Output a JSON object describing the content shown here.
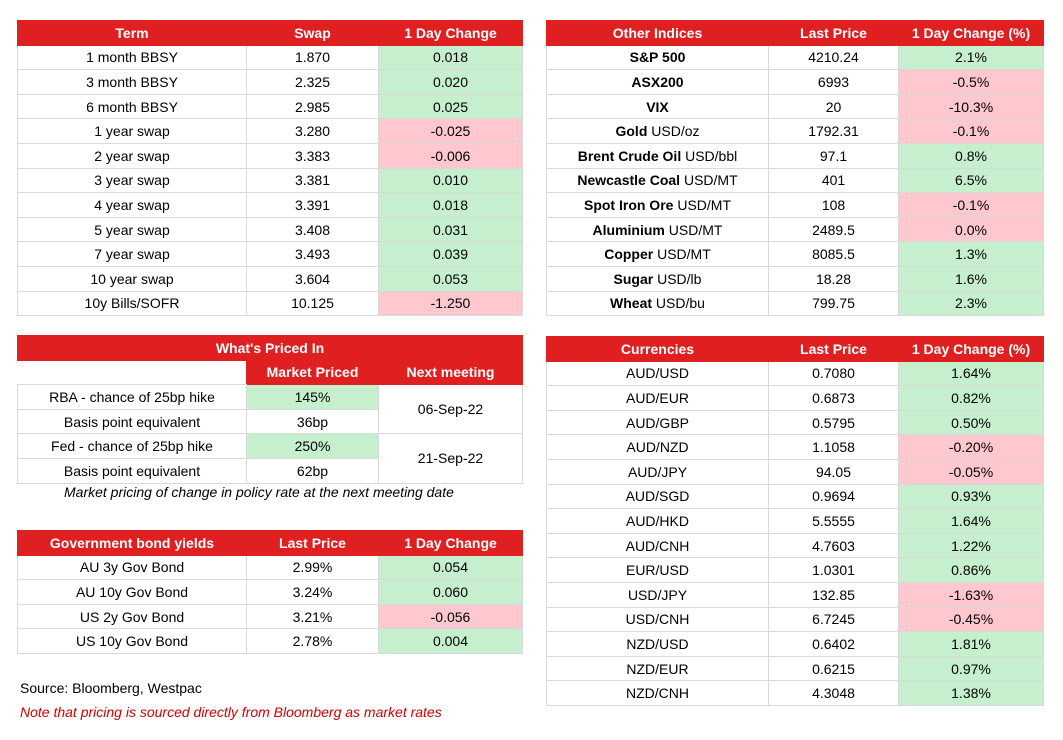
{
  "swaps": {
    "headers": [
      "Term",
      "Swap",
      "1 Day Change"
    ],
    "rows": [
      {
        "term": "1 month BBSY",
        "swap": "1.870",
        "change": "0.018",
        "dir": "pos"
      },
      {
        "term": "3 month BBSY",
        "swap": "2.325",
        "change": "0.020",
        "dir": "pos"
      },
      {
        "term": "6 month BBSY",
        "swap": "2.985",
        "change": "0.025",
        "dir": "pos"
      },
      {
        "term": "1 year swap",
        "swap": "3.280",
        "change": "-0.025",
        "dir": "neg"
      },
      {
        "term": "2 year swap",
        "swap": "3.383",
        "change": "-0.006",
        "dir": "neg"
      },
      {
        "term": "3 year swap",
        "swap": "3.381",
        "change": "0.010",
        "dir": "pos"
      },
      {
        "term": "4 year swap",
        "swap": "3.391",
        "change": "0.018",
        "dir": "pos"
      },
      {
        "term": "5 year swap",
        "swap": "3.408",
        "change": "0.031",
        "dir": "pos"
      },
      {
        "term": "7 year swap",
        "swap": "3.493",
        "change": "0.039",
        "dir": "pos"
      },
      {
        "term": "10 year swap",
        "swap": "3.604",
        "change": "0.053",
        "dir": "pos"
      },
      {
        "term": "10y Bills/SOFR",
        "swap": "10.125",
        "change": "-1.250",
        "dir": "neg"
      }
    ]
  },
  "indices": {
    "headers": [
      "Other Indices",
      "Last Price",
      "1 Day Change (%)"
    ],
    "rows": [
      {
        "name": "S&P 500",
        "unit": "",
        "price": "4210.24",
        "change": "2.1%",
        "dir": "pos"
      },
      {
        "name": "ASX200",
        "unit": "",
        "price": "6993",
        "change": "-0.5%",
        "dir": "neg"
      },
      {
        "name": "VIX",
        "unit": "",
        "price": "20",
        "change": "-10.3%",
        "dir": "neg"
      },
      {
        "name": "Gold",
        "unit": " USD/oz",
        "price": "1792.31",
        "change": "-0.1%",
        "dir": "neg"
      },
      {
        "name": "Brent Crude Oil",
        "unit": " USD/bbl",
        "price": "97.1",
        "change": "0.8%",
        "dir": "pos"
      },
      {
        "name": "Newcastle Coal",
        "unit": " USD/MT",
        "price": "401",
        "change": "6.5%",
        "dir": "pos"
      },
      {
        "name": "Spot Iron Ore",
        "unit": " USD/MT",
        "price": "108",
        "change": "-0.1%",
        "dir": "neg"
      },
      {
        "name": "Aluminium",
        "unit": " USD/MT",
        "price": "2489.5",
        "change": "0.0%",
        "dir": "neg"
      },
      {
        "name": "Copper",
        "unit": " USD/MT",
        "price": "8085.5",
        "change": "1.3%",
        "dir": "pos"
      },
      {
        "name": "Sugar",
        "unit": " USD/lb",
        "price": "18.28",
        "change": "1.6%",
        "dir": "pos"
      },
      {
        "name": "Wheat",
        "unit": " USD/bu",
        "price": "799.75",
        "change": "2.3%",
        "dir": "pos"
      }
    ]
  },
  "priced_in": {
    "title": "What's Priced In",
    "headers": [
      "Market Priced",
      "Next meeting"
    ],
    "rows": [
      {
        "label": "RBA - chance of 25bp hike",
        "value": "145%",
        "dir": "pos"
      },
      {
        "label": "Basis point equivalent",
        "value": "36bp",
        "dir": ""
      },
      {
        "label": "Fed - chance of 25bp hike",
        "value": "250%",
        "dir": "pos"
      },
      {
        "label": "Basis point equivalent",
        "value": "62bp",
        "dir": ""
      }
    ],
    "meetings": [
      "06-Sep-22",
      "21-Sep-22"
    ],
    "note": "Market pricing of change in policy rate at the next meeting date"
  },
  "bonds": {
    "headers": [
      "Government bond yields",
      "Last Price",
      "1 Day Change"
    ],
    "rows": [
      {
        "name": "AU 3y Gov Bond",
        "price": "2.99%",
        "change": "0.054",
        "dir": "pos"
      },
      {
        "name": "AU 10y Gov Bond",
        "price": "3.24%",
        "change": "0.060",
        "dir": "pos"
      },
      {
        "name": "US 2y Gov Bond",
        "price": "3.21%",
        "change": "-0.056",
        "dir": "neg"
      },
      {
        "name": "US 10y Gov Bond",
        "price": "2.78%",
        "change": "0.004",
        "dir": "pos"
      }
    ]
  },
  "currencies": {
    "headers": [
      "Currencies",
      "Last Price",
      "1 Day Change (%)"
    ],
    "rows": [
      {
        "pair": "AUD/USD",
        "price": "0.7080",
        "change": "1.64%",
        "dir": "pos"
      },
      {
        "pair": "AUD/EUR",
        "price": "0.6873",
        "change": "0.82%",
        "dir": "pos"
      },
      {
        "pair": "AUD/GBP",
        "price": "0.5795",
        "change": "0.50%",
        "dir": "pos"
      },
      {
        "pair": "AUD/NZD",
        "price": "1.1058",
        "change": "-0.20%",
        "dir": "neg"
      },
      {
        "pair": "AUD/JPY",
        "price": "94.05",
        "change": "-0.05%",
        "dir": "neg"
      },
      {
        "pair": "AUD/SGD",
        "price": "0.9694",
        "change": "0.93%",
        "dir": "pos"
      },
      {
        "pair": "AUD/HKD",
        "price": "5.5555",
        "change": "1.64%",
        "dir": "pos"
      },
      {
        "pair": "AUD/CNH",
        "price": "4.7603",
        "change": "1.22%",
        "dir": "pos"
      },
      {
        "pair": "EUR/USD",
        "price": "1.0301",
        "change": "0.86%",
        "dir": "pos"
      },
      {
        "pair": "USD/JPY",
        "price": "132.85",
        "change": "-1.63%",
        "dir": "neg"
      },
      {
        "pair": "USD/CNH",
        "price": "6.7245",
        "change": "-0.45%",
        "dir": "neg"
      },
      {
        "pair": "NZD/USD",
        "price": "0.6402",
        "change": "1.81%",
        "dir": "pos"
      },
      {
        "pair": "NZD/EUR",
        "price": "0.6215",
        "change": "0.97%",
        "dir": "pos"
      },
      {
        "pair": "NZD/CNH",
        "price": "4.3048",
        "change": "1.38%",
        "dir": "pos"
      }
    ]
  },
  "footer": {
    "source": "Source: Bloomberg, Westpac",
    "disclaimer": "Note that pricing is sourced directly from Bloomberg as market rates"
  }
}
